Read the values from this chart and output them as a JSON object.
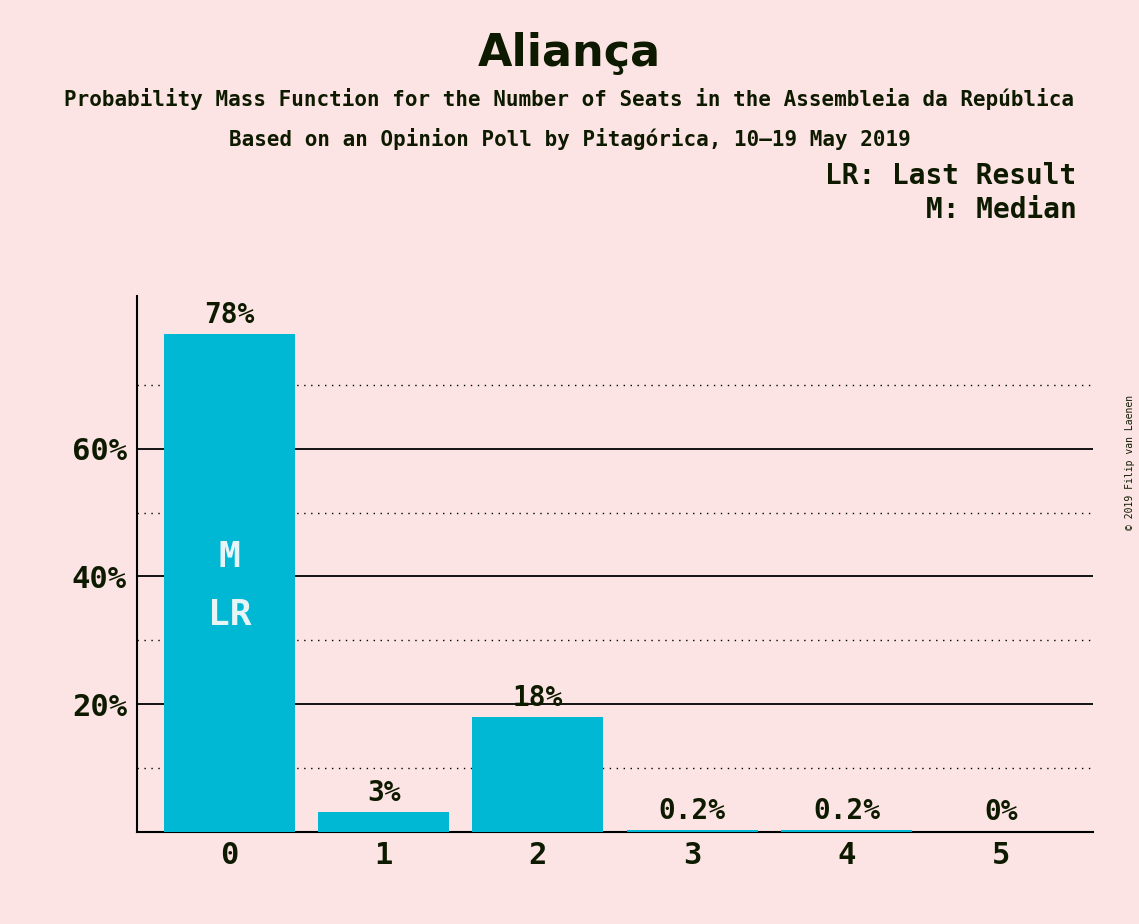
{
  "title": "Aliança",
  "subtitle1": "Probability Mass Function for the Number of Seats in the Assembleia da República",
  "subtitle2": "Based on an Opinion Poll by Pitagórica, 10–19 May 2019",
  "copyright": "© 2019 Filip van Laenen",
  "categories": [
    0,
    1,
    2,
    3,
    4,
    5
  ],
  "values": [
    0.78,
    0.03,
    0.18,
    0.002,
    0.002,
    0.0
  ],
  "labels": [
    "78%",
    "3%",
    "18%",
    "0.2%",
    "0.2%",
    "0%"
  ],
  "bar_color": "#00b8d4",
  "background_color": "#fce4e4",
  "text_color": "#0d1a00",
  "bar_text_color_inside": "#e8f5f7",
  "ylim": [
    0,
    0.84
  ],
  "yticks": [
    0.2,
    0.4,
    0.6
  ],
  "ytick_labels": [
    "20%",
    "40%",
    "60%"
  ],
  "solid_grid_lines": [
    0.2,
    0.4,
    0.6
  ],
  "dotted_grid_lines": [
    0.1,
    0.3,
    0.5,
    0.7
  ],
  "legend_line1": "LR: Last Result",
  "legend_line2": "M: Median",
  "title_fontsize": 32,
  "subtitle_fontsize": 15,
  "axis_fontsize": 22,
  "label_fontsize": 20,
  "inside_label_fontsize": 26
}
